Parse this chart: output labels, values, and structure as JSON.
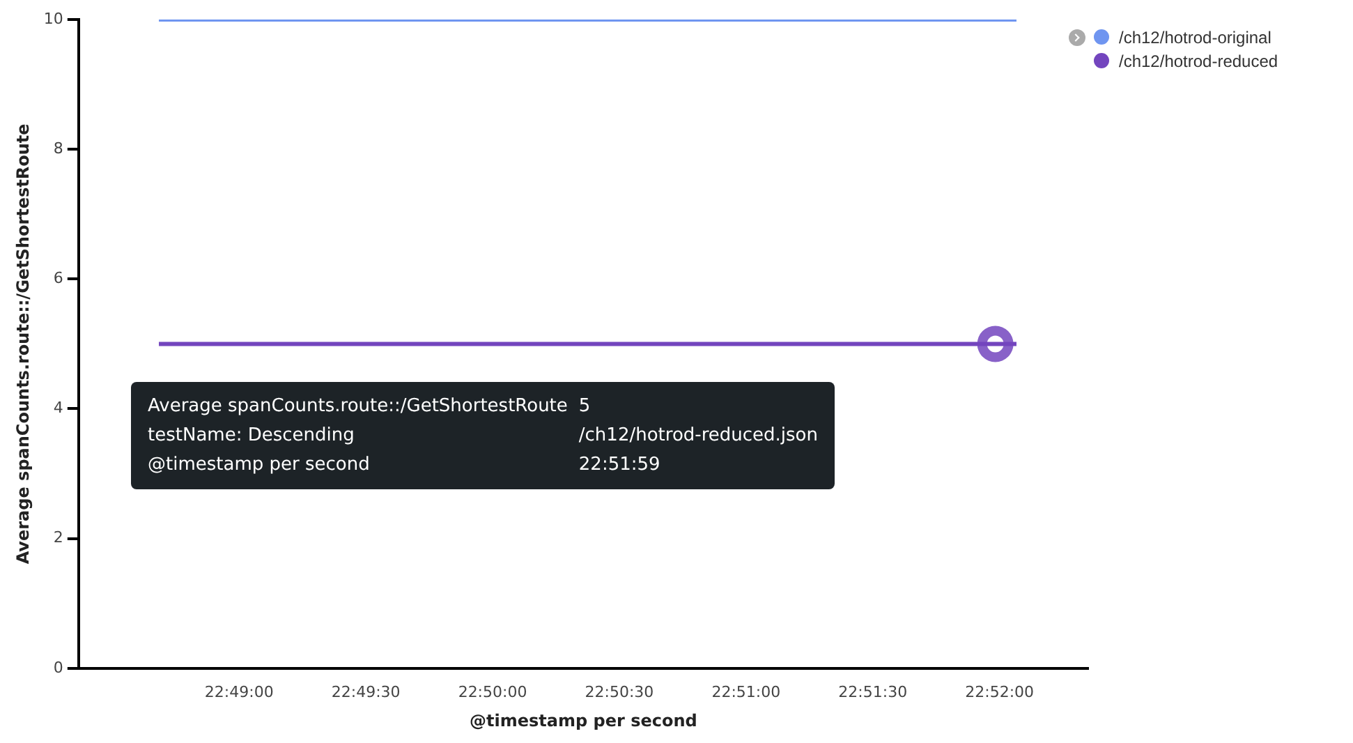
{
  "chart_data": {
    "type": "line",
    "xlabel": "@timestamp per second",
    "ylabel": "Average spanCounts.route::/GetShortestRoute",
    "x": [
      22.81139,
      22.84,
      22.86639,
      22.86778
    ],
    "series": [
      {
        "name": "/ch12/hotrod-original",
        "color": "#6f95f0",
        "values": [
          10,
          10,
          10,
          10
        ]
      },
      {
        "name": "/ch12/hotrod-reduced",
        "color": "#7345be",
        "values": [
          5,
          5,
          5,
          5
        ]
      }
    ],
    "xlim": [
      22.80611,
      22.8725
    ],
    "xticks": [
      {
        "value": 22.816667,
        "label": "22:49:00"
      },
      {
        "value": 22.825,
        "label": "22:49:30"
      },
      {
        "value": 22.833333,
        "label": "22:50:00"
      },
      {
        "value": 22.841667,
        "label": "22:50:30"
      },
      {
        "value": 22.85,
        "label": "22:51:00"
      },
      {
        "value": 22.858333,
        "label": "22:51:30"
      },
      {
        "value": 22.866667,
        "label": "22:52:00"
      }
    ],
    "ylim": [
      0,
      10
    ],
    "yticks": [
      0,
      2,
      4,
      6,
      8,
      10
    ],
    "grid": false,
    "legend": "top right",
    "marker": "none",
    "line_style": "solid",
    "annotations": [
      "Average spanCounts.route::/GetShortestRoute",
      "5",
      "testName: Descending",
      "/ch12/hotrod-reduced.json",
      "@timestamp per second",
      "22:51:59"
    ]
  }
}
